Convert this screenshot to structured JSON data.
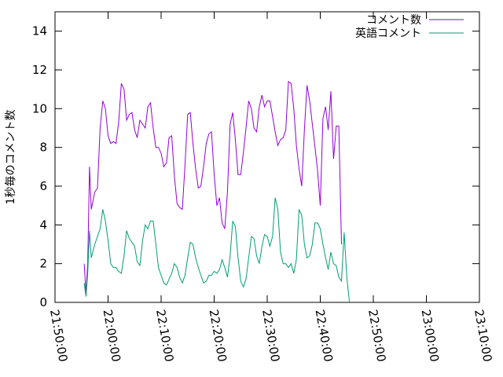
{
  "chart_data": {
    "type": "line",
    "ylabel": "1秒毎のコメント数",
    "ylim": [
      0,
      15
    ],
    "yticks": [
      0,
      2,
      4,
      6,
      8,
      10,
      12,
      14
    ],
    "xlim": [
      "21:50:00",
      "23:10:00"
    ],
    "xticks": [
      "21:50:00",
      "22:00:00",
      "22:10:00",
      "22:20:00",
      "22:30:00",
      "22:40:00",
      "22:50:00",
      "23:00:00",
      "23:10:00"
    ],
    "legend_position": "top-right",
    "grid": false,
    "series": [
      {
        "name": "コメント数",
        "color": "#9400d3",
        "points": [
          [
            "21:55:30",
            2.0
          ],
          [
            "21:55:50",
            0.5
          ],
          [
            "21:56:10",
            2.0
          ],
          [
            "21:56:30",
            7.0
          ],
          [
            "21:56:50",
            4.8
          ],
          [
            "21:57:30",
            5.7
          ],
          [
            "21:58:00",
            5.9
          ],
          [
            "21:58:30",
            9.0
          ],
          [
            "21:59:00",
            10.4
          ],
          [
            "21:59:30",
            10.0
          ],
          [
            "22:00:00",
            8.6
          ],
          [
            "22:00:30",
            8.2
          ],
          [
            "22:01:00",
            8.3
          ],
          [
            "22:01:30",
            8.2
          ],
          [
            "22:02:00",
            9.3
          ],
          [
            "22:02:30",
            11.3
          ],
          [
            "22:03:00",
            11.0
          ],
          [
            "22:03:30",
            9.4
          ],
          [
            "22:04:00",
            9.7
          ],
          [
            "22:04:30",
            9.8
          ],
          [
            "22:05:00",
            8.9
          ],
          [
            "22:05:30",
            8.5
          ],
          [
            "22:06:00",
            9.4
          ],
          [
            "22:06:30",
            9.2
          ],
          [
            "22:07:00",
            9.0
          ],
          [
            "22:07:30",
            10.1
          ],
          [
            "22:08:00",
            10.3
          ],
          [
            "22:08:30",
            9.0
          ],
          [
            "22:09:00",
            8.0
          ],
          [
            "22:09:30",
            8.0
          ],
          [
            "22:10:00",
            7.7
          ],
          [
            "22:10:30",
            7.0
          ],
          [
            "22:11:00",
            7.2
          ],
          [
            "22:11:30",
            8.5
          ],
          [
            "22:12:00",
            8.6
          ],
          [
            "22:12:30",
            6.5
          ],
          [
            "22:13:00",
            5.1
          ],
          [
            "22:13:30",
            4.9
          ],
          [
            "22:14:00",
            4.8
          ],
          [
            "22:14:30",
            7.1
          ],
          [
            "22:15:00",
            9.7
          ],
          [
            "22:15:30",
            9.8
          ],
          [
            "22:16:00",
            8.2
          ],
          [
            "22:16:30",
            6.9
          ],
          [
            "22:17:00",
            5.9
          ],
          [
            "22:17:30",
            6.0
          ],
          [
            "22:18:00",
            7.0
          ],
          [
            "22:18:30",
            8.2
          ],
          [
            "22:19:00",
            8.7
          ],
          [
            "22:19:30",
            8.8
          ],
          [
            "22:20:00",
            6.6
          ],
          [
            "22:20:30",
            5.0
          ],
          [
            "22:21:00",
            5.4
          ],
          [
            "22:21:30",
            4.1
          ],
          [
            "22:22:00",
            3.8
          ],
          [
            "22:22:30",
            5.7
          ],
          [
            "22:23:00",
            9.2
          ],
          [
            "22:23:30",
            9.8
          ],
          [
            "22:24:00",
            8.4
          ],
          [
            "22:24:30",
            6.6
          ],
          [
            "22:25:00",
            6.6
          ],
          [
            "22:25:30",
            7.7
          ],
          [
            "22:26:00",
            9.0
          ],
          [
            "22:26:30",
            10.4
          ],
          [
            "22:27:00",
            10.0
          ],
          [
            "22:27:30",
            9.0
          ],
          [
            "22:28:00",
            8.8
          ],
          [
            "22:28:30",
            10.1
          ],
          [
            "22:29:00",
            10.7
          ],
          [
            "22:29:30",
            10.1
          ],
          [
            "22:30:00",
            10.4
          ],
          [
            "22:30:30",
            10.4
          ],
          [
            "22:31:00",
            9.6
          ],
          [
            "22:31:30",
            8.8
          ],
          [
            "22:32:00",
            8.1
          ],
          [
            "22:32:30",
            8.4
          ],
          [
            "22:33:00",
            8.5
          ],
          [
            "22:33:30",
            8.9
          ],
          [
            "22:34:00",
            11.4
          ],
          [
            "22:34:30",
            11.3
          ],
          [
            "22:35:00",
            10.0
          ],
          [
            "22:35:30",
            8.1
          ],
          [
            "22:36:00",
            6.9
          ],
          [
            "22:36:30",
            6.0
          ],
          [
            "22:37:00",
            8.9
          ],
          [
            "22:37:30",
            11.2
          ],
          [
            "22:38:00",
            10.4
          ],
          [
            "22:38:30",
            9.2
          ],
          [
            "22:39:00",
            8.0
          ],
          [
            "22:39:30",
            6.8
          ],
          [
            "22:40:00",
            5.0
          ],
          [
            "22:40:30",
            9.5
          ],
          [
            "22:41:00",
            10.1
          ],
          [
            "22:41:30",
            8.9
          ],
          [
            "22:42:00",
            10.9
          ],
          [
            "22:42:30",
            7.4
          ],
          [
            "22:43:00",
            9.1
          ],
          [
            "22:43:30",
            9.1
          ],
          [
            "22:44:00",
            3.0
          ]
        ]
      },
      {
        "name": "英語コメント",
        "color": "#009e73",
        "points": [
          [
            "21:55:30",
            1.0
          ],
          [
            "21:55:50",
            0.3
          ],
          [
            "21:56:10",
            1.5
          ],
          [
            "21:56:30",
            3.7
          ],
          [
            "21:56:50",
            2.3
          ],
          [
            "21:57:30",
            3.0
          ],
          [
            "21:58:00",
            3.4
          ],
          [
            "21:58:30",
            3.8
          ],
          [
            "21:59:00",
            4.8
          ],
          [
            "21:59:30",
            4.2
          ],
          [
            "22:00:00",
            3.2
          ],
          [
            "22:00:30",
            2.0
          ],
          [
            "22:01:00",
            1.8
          ],
          [
            "22:01:30",
            1.8
          ],
          [
            "22:02:00",
            1.6
          ],
          [
            "22:02:30",
            1.5
          ],
          [
            "22:03:00",
            2.4
          ],
          [
            "22:03:30",
            3.7
          ],
          [
            "22:04:00",
            3.3
          ],
          [
            "22:04:30",
            3.1
          ],
          [
            "22:05:00",
            2.9
          ],
          [
            "22:05:30",
            2.1
          ],
          [
            "22:06:00",
            1.9
          ],
          [
            "22:06:30",
            3.2
          ],
          [
            "22:07:00",
            4.0
          ],
          [
            "22:07:30",
            3.8
          ],
          [
            "22:08:00",
            4.2
          ],
          [
            "22:08:30",
            4.2
          ],
          [
            "22:09:00",
            3.0
          ],
          [
            "22:09:30",
            1.8
          ],
          [
            "22:10:00",
            1.4
          ],
          [
            "22:10:30",
            1.0
          ],
          [
            "22:11:00",
            0.9
          ],
          [
            "22:11:30",
            1.2
          ],
          [
            "22:12:00",
            1.5
          ],
          [
            "22:12:30",
            2.0
          ],
          [
            "22:13:00",
            1.8
          ],
          [
            "22:13:30",
            1.3
          ],
          [
            "22:14:00",
            1.0
          ],
          [
            "22:14:30",
            1.4
          ],
          [
            "22:15:00",
            2.3
          ],
          [
            "22:15:30",
            3.1
          ],
          [
            "22:16:00",
            3.0
          ],
          [
            "22:16:30",
            2.3
          ],
          [
            "22:17:00",
            1.8
          ],
          [
            "22:17:30",
            1.4
          ],
          [
            "22:18:00",
            1.0
          ],
          [
            "22:18:30",
            1.1
          ],
          [
            "22:19:00",
            1.4
          ],
          [
            "22:19:30",
            1.4
          ],
          [
            "22:20:00",
            1.6
          ],
          [
            "22:20:30",
            1.5
          ],
          [
            "22:21:00",
            1.7
          ],
          [
            "22:21:30",
            2.2
          ],
          [
            "22:22:00",
            1.8
          ],
          [
            "22:22:30",
            1.3
          ],
          [
            "22:23:00",
            2.4
          ],
          [
            "22:23:30",
            4.2
          ],
          [
            "22:24:00",
            3.9
          ],
          [
            "22:24:30",
            2.3
          ],
          [
            "22:25:00",
            1.1
          ],
          [
            "22:25:30",
            0.8
          ],
          [
            "22:26:00",
            1.2
          ],
          [
            "22:26:30",
            2.3
          ],
          [
            "22:27:00",
            3.4
          ],
          [
            "22:27:30",
            3.3
          ],
          [
            "22:28:00",
            2.4
          ],
          [
            "22:28:30",
            2.0
          ],
          [
            "22:29:00",
            2.9
          ],
          [
            "22:29:30",
            3.5
          ],
          [
            "22:30:00",
            3.4
          ],
          [
            "22:30:30",
            2.9
          ],
          [
            "22:31:00",
            3.4
          ],
          [
            "22:31:30",
            5.4
          ],
          [
            "22:32:00",
            4.8
          ],
          [
            "22:32:30",
            2.6
          ],
          [
            "22:33:00",
            2.0
          ],
          [
            "22:33:30",
            2.0
          ],
          [
            "22:34:00",
            1.8
          ],
          [
            "22:34:30",
            2.0
          ],
          [
            "22:35:00",
            1.5
          ],
          [
            "22:35:30",
            2.2
          ],
          [
            "22:36:00",
            4.8
          ],
          [
            "22:36:30",
            4.5
          ],
          [
            "22:37:00",
            3.0
          ],
          [
            "22:37:30",
            2.3
          ],
          [
            "22:38:00",
            2.4
          ],
          [
            "22:38:30",
            3.0
          ],
          [
            "22:39:00",
            4.1
          ],
          [
            "22:39:30",
            4.1
          ],
          [
            "22:40:00",
            3.8
          ],
          [
            "22:40:30",
            3.0
          ],
          [
            "22:41:00",
            2.3
          ],
          [
            "22:41:30",
            1.7
          ],
          [
            "22:42:00",
            2.6
          ],
          [
            "22:42:30",
            2.0
          ],
          [
            "22:43:00",
            1.9
          ],
          [
            "22:43:30",
            1.3
          ],
          [
            "22:44:00",
            1.1
          ],
          [
            "22:44:30",
            3.6
          ],
          [
            "22:45:00",
            1.3
          ],
          [
            "22:45:30",
            0.0
          ]
        ]
      }
    ]
  }
}
